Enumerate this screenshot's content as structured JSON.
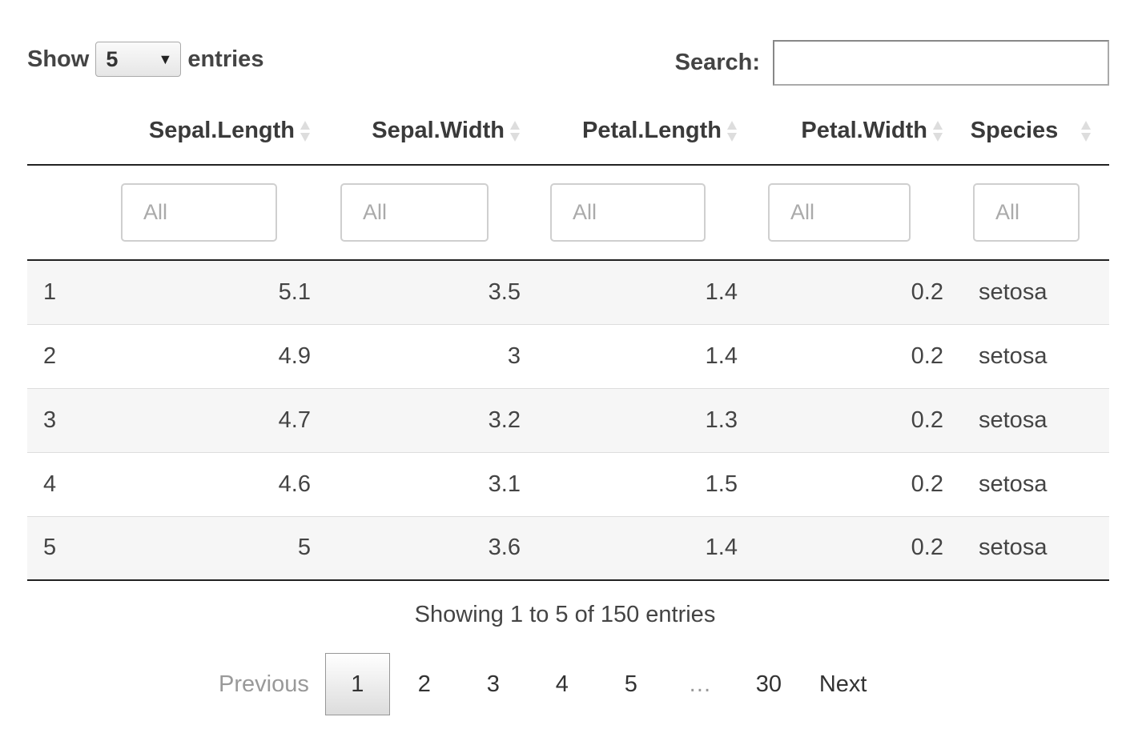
{
  "length": {
    "show_label": "Show",
    "selected": "5",
    "entries_label": "entries"
  },
  "search": {
    "label": "Search:",
    "value": ""
  },
  "table": {
    "columns": [
      "",
      "Sepal.Length",
      "Sepal.Width",
      "Petal.Length",
      "Petal.Width",
      "Species"
    ],
    "filter_placeholder": "All",
    "rows": [
      [
        "1",
        "5.1",
        "3.5",
        "1.4",
        "0.2",
        "setosa"
      ],
      [
        "2",
        "4.9",
        "3",
        "1.4",
        "0.2",
        "setosa"
      ],
      [
        "3",
        "4.7",
        "3.2",
        "1.3",
        "0.2",
        "setosa"
      ],
      [
        "4",
        "4.6",
        "3.1",
        "1.5",
        "0.2",
        "setosa"
      ],
      [
        "5",
        "5",
        "3.6",
        "1.4",
        "0.2",
        "setosa"
      ]
    ]
  },
  "info": "Showing 1 to 5 of 150 entries",
  "pagination": {
    "previous": "Previous",
    "pages": [
      "1",
      "2",
      "3",
      "4",
      "5"
    ],
    "ellipsis": "…",
    "last": "30",
    "next": "Next",
    "current": "1"
  },
  "icons": {
    "sort": "sort-both-icon",
    "select_caret": "caret-down-icon"
  }
}
